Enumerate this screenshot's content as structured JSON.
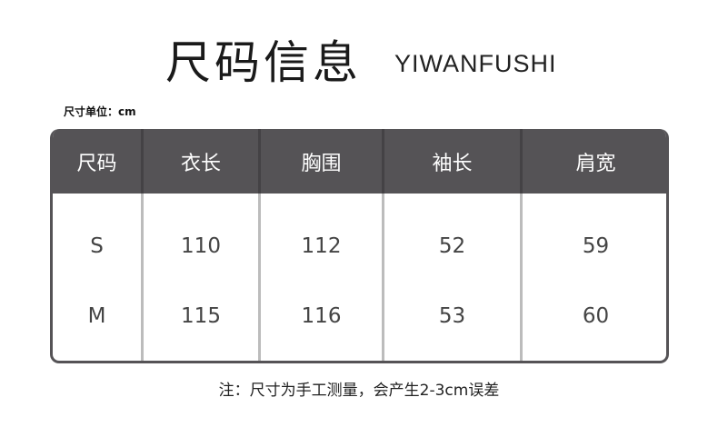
{
  "title": "尺码信息",
  "subtitle": "YIWANFUSHI",
  "unit_label": "尺寸单位：cm",
  "table": {
    "headers": [
      "尺码",
      "衣长",
      "胸围",
      "袖长",
      "肩宽"
    ],
    "rows": [
      [
        "S",
        "110",
        "112",
        "52",
        "59"
      ],
      [
        "M",
        "115",
        "116",
        "53",
        "60"
      ]
    ]
  },
  "note": "注：尺寸为手工测量，会产生2-3cm误差",
  "colors": {
    "header_bg": "#555356",
    "divider": "#bcbcbc"
  }
}
